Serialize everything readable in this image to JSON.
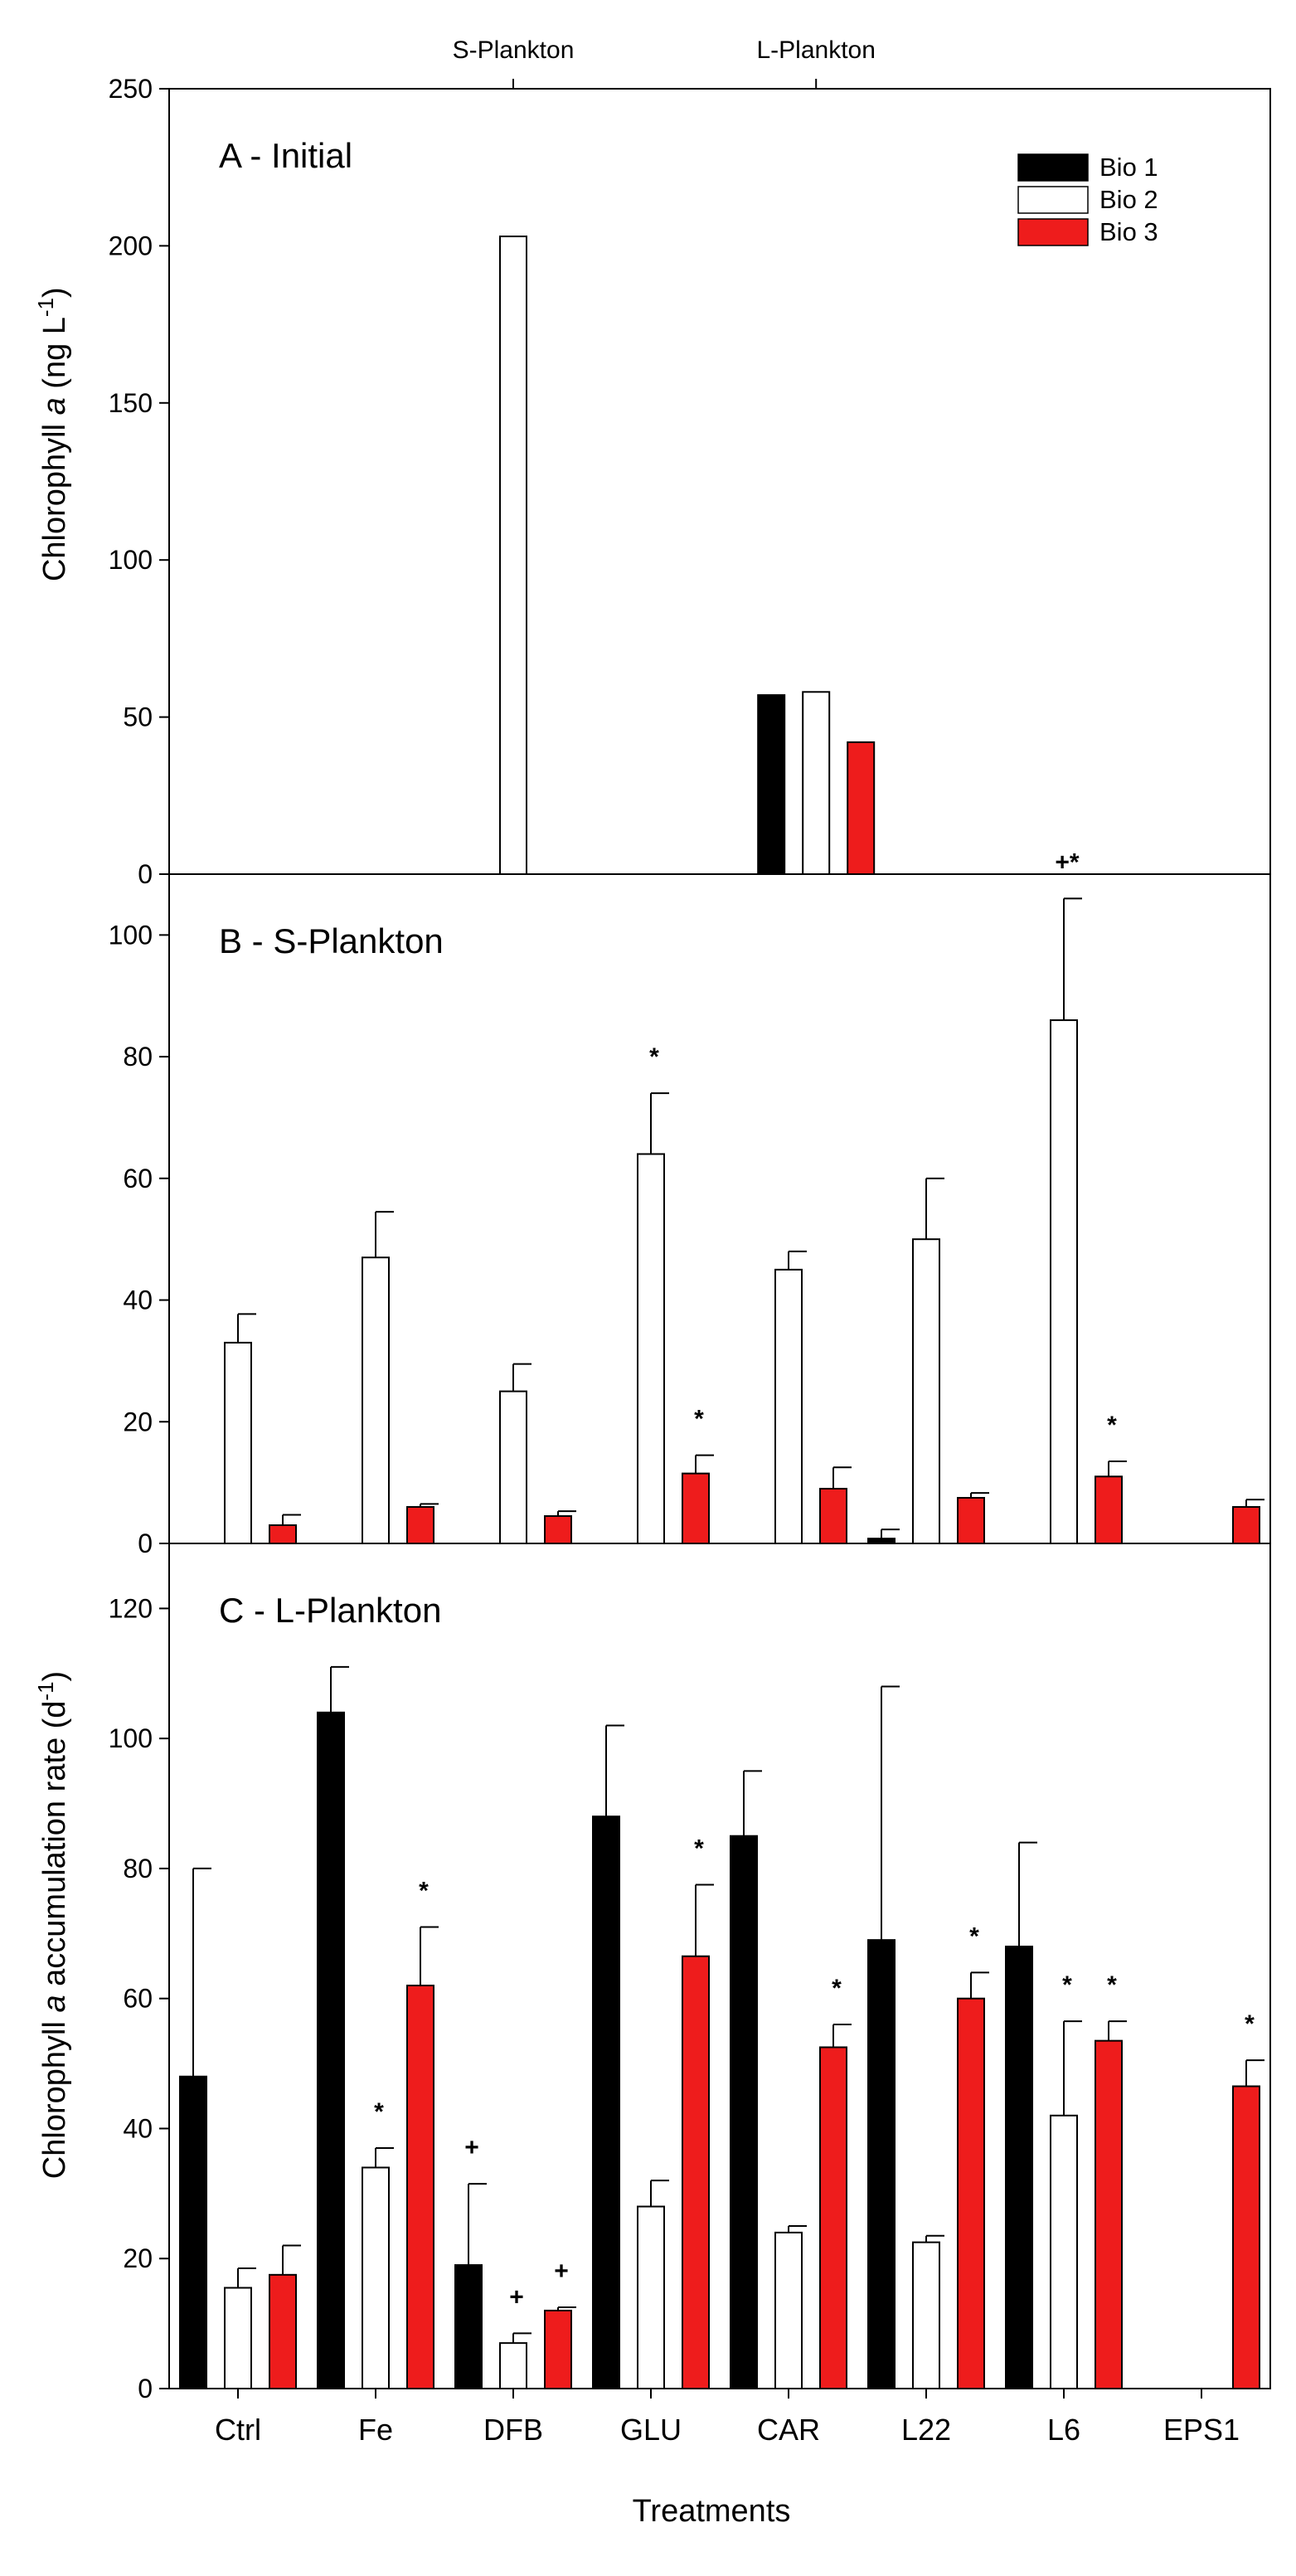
{
  "xlabel": "Treatments",
  "top_labels": [
    "S-Plankton",
    "L-Plankton"
  ],
  "legend": [
    {
      "name": "Bio 1",
      "color": "#000000"
    },
    {
      "name": "Bio 2",
      "color": "#ffffff"
    },
    {
      "name": "Bio 3",
      "color": "#ee1c1c"
    }
  ],
  "ylabel_top": {
    "pre": "Chlorophyll ",
    "italic": "a",
    "post": " (ng L",
    "sup": "-1",
    "end": ")"
  },
  "ylabel_rate": {
    "pre": "Chlorophyll ",
    "italic": "a",
    "post": " accumulation rate (d",
    "sup": "-1",
    "end": ")"
  },
  "chart_data": [
    {
      "type": "bar",
      "panel": "A",
      "title": "A - Initial",
      "categories": [
        "S-Plankton",
        "L-Plankton"
      ],
      "series": [
        {
          "name": "Bio 1",
          "values": [
            null,
            57
          ]
        },
        {
          "name": "Bio 2",
          "values": [
            203,
            58
          ]
        },
        {
          "name": "Bio 3",
          "values": [
            null,
            42
          ]
        }
      ],
      "ylim": [
        0,
        250
      ],
      "yticks": [
        0,
        50,
        100,
        150,
        200,
        250
      ]
    },
    {
      "type": "bar",
      "panel": "B",
      "title": "B - S-Plankton",
      "categories": [
        "Ctrl",
        "Fe",
        "DFB",
        "GLU",
        "CAR",
        "L22",
        "L6",
        "EPS1"
      ],
      "series": [
        {
          "name": "Bio 1",
          "values": [
            null,
            null,
            null,
            null,
            null,
            0.8,
            null,
            null
          ],
          "errors": [
            null,
            null,
            null,
            null,
            null,
            1.5,
            null,
            null
          ],
          "marks": [
            "",
            "",
            "",
            "",
            "",
            "",
            "",
            ""
          ]
        },
        {
          "name": "Bio 2",
          "values": [
            33,
            47,
            25,
            64,
            45,
            50,
            86,
            null
          ],
          "errors": [
            4.7,
            7.5,
            4.5,
            10,
            3,
            10,
            20,
            null
          ],
          "marks": [
            "",
            "",
            "",
            "*",
            "",
            "",
            "+*",
            ""
          ]
        },
        {
          "name": "Bio 3",
          "values": [
            3,
            6,
            4.5,
            11.5,
            9,
            7.5,
            11,
            6
          ],
          "errors": [
            1.7,
            0.5,
            0.8,
            3,
            3.5,
            0.8,
            2.5,
            1.2
          ],
          "marks": [
            "",
            "",
            "",
            "*",
            "",
            "",
            "*",
            ""
          ]
        }
      ],
      "ylim": [
        0,
        110
      ],
      "yticks": [
        0,
        20,
        40,
        60,
        80,
        100
      ]
    },
    {
      "type": "bar",
      "panel": "C",
      "title": "C - L-Plankton",
      "categories": [
        "Ctrl",
        "Fe",
        "DFB",
        "GLU",
        "CAR",
        "L22",
        "L6",
        "EPS1"
      ],
      "series": [
        {
          "name": "Bio 1",
          "values": [
            48,
            104,
            19,
            88,
            85,
            69,
            68,
            null
          ],
          "errors": [
            32,
            7,
            12.5,
            14,
            10,
            39,
            16,
            null
          ],
          "marks": [
            "",
            "",
            "+",
            "",
            "",
            "",
            "",
            ""
          ]
        },
        {
          "name": "Bio 2",
          "values": [
            15.5,
            34,
            7,
            28,
            24,
            22.5,
            42,
            null
          ],
          "errors": [
            3,
            3,
            1.5,
            4,
            1,
            1,
            14.5,
            null
          ],
          "marks": [
            "",
            "*",
            "+",
            "",
            "",
            "",
            "*",
            ""
          ]
        },
        {
          "name": "Bio 3",
          "values": [
            17.5,
            62,
            12,
            66.5,
            52.5,
            60,
            53.5,
            46.5
          ],
          "errors": [
            4.5,
            9,
            0.5,
            11,
            3.5,
            4,
            3,
            4
          ],
          "marks": [
            "",
            "*",
            "+",
            "*",
            "*",
            "*",
            "*",
            "*"
          ]
        }
      ],
      "ylim": [
        0,
        130
      ],
      "yticks": [
        0,
        20,
        40,
        60,
        80,
        100,
        120
      ]
    }
  ]
}
